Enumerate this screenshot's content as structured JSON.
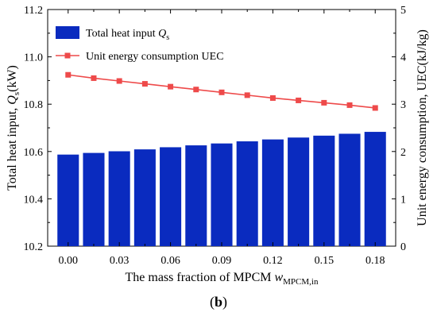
{
  "chart_data": {
    "type": "bar",
    "x": [
      0.0,
      0.015,
      0.03,
      0.045,
      0.06,
      0.075,
      0.09,
      0.105,
      0.12,
      0.135,
      0.15,
      0.165,
      0.18
    ],
    "x_tick_labels": [
      "0.00",
      "0.03",
      "0.06",
      "0.09",
      "0.12",
      "0.15",
      "0.18"
    ],
    "x_ticks": [
      0.0,
      0.03,
      0.06,
      0.09,
      0.12,
      0.15,
      0.18
    ],
    "xlabel": {
      "main": "The mass fraction of MPCM ",
      "var": "w",
      "sub": "MPCM,in"
    },
    "xlim": [
      -0.012,
      0.192
    ],
    "ylabel_left": {
      "main": "Total heat input, ",
      "var": "Q",
      "sub": "s",
      "unit": "(kW)"
    },
    "ylabel_right": "Unit energy consumption, UEC(kJ/kg)",
    "ylim_left": [
      10.2,
      11.2
    ],
    "ylim_right": [
      0,
      5
    ],
    "y_ticks_left": [
      "10.2",
      "10.4",
      "10.6",
      "10.8",
      "11.0",
      "11.2"
    ],
    "y_ticks_left_values": [
      10.2,
      10.4,
      10.6,
      10.8,
      11.0,
      11.2
    ],
    "y_ticks_right": [
      "0",
      "1",
      "2",
      "3",
      "4",
      "5"
    ],
    "y_ticks_right_values": [
      0,
      1,
      2,
      3,
      4,
      5
    ],
    "series": [
      {
        "name": "Total heat input ",
        "name_var": "Q",
        "name_sub": "s",
        "type": "bar",
        "axis": "left",
        "color": "#0a2bbf",
        "values": [
          10.587,
          10.594,
          10.601,
          10.609,
          10.618,
          10.626,
          10.634,
          10.643,
          10.651,
          10.659,
          10.667,
          10.675,
          10.683
        ]
      },
      {
        "name": "Unit energy consumption UEC",
        "type": "line",
        "axis": "right",
        "color": "#ee4a4a",
        "marker": "square",
        "values": [
          3.62,
          3.55,
          3.49,
          3.43,
          3.37,
          3.31,
          3.25,
          3.19,
          3.13,
          3.08,
          3.03,
          2.98,
          2.92
        ]
      }
    ],
    "legend_position": "top-left",
    "grid": false
  },
  "caption": {
    "open": "(",
    "letter": "b",
    "close": ")"
  }
}
